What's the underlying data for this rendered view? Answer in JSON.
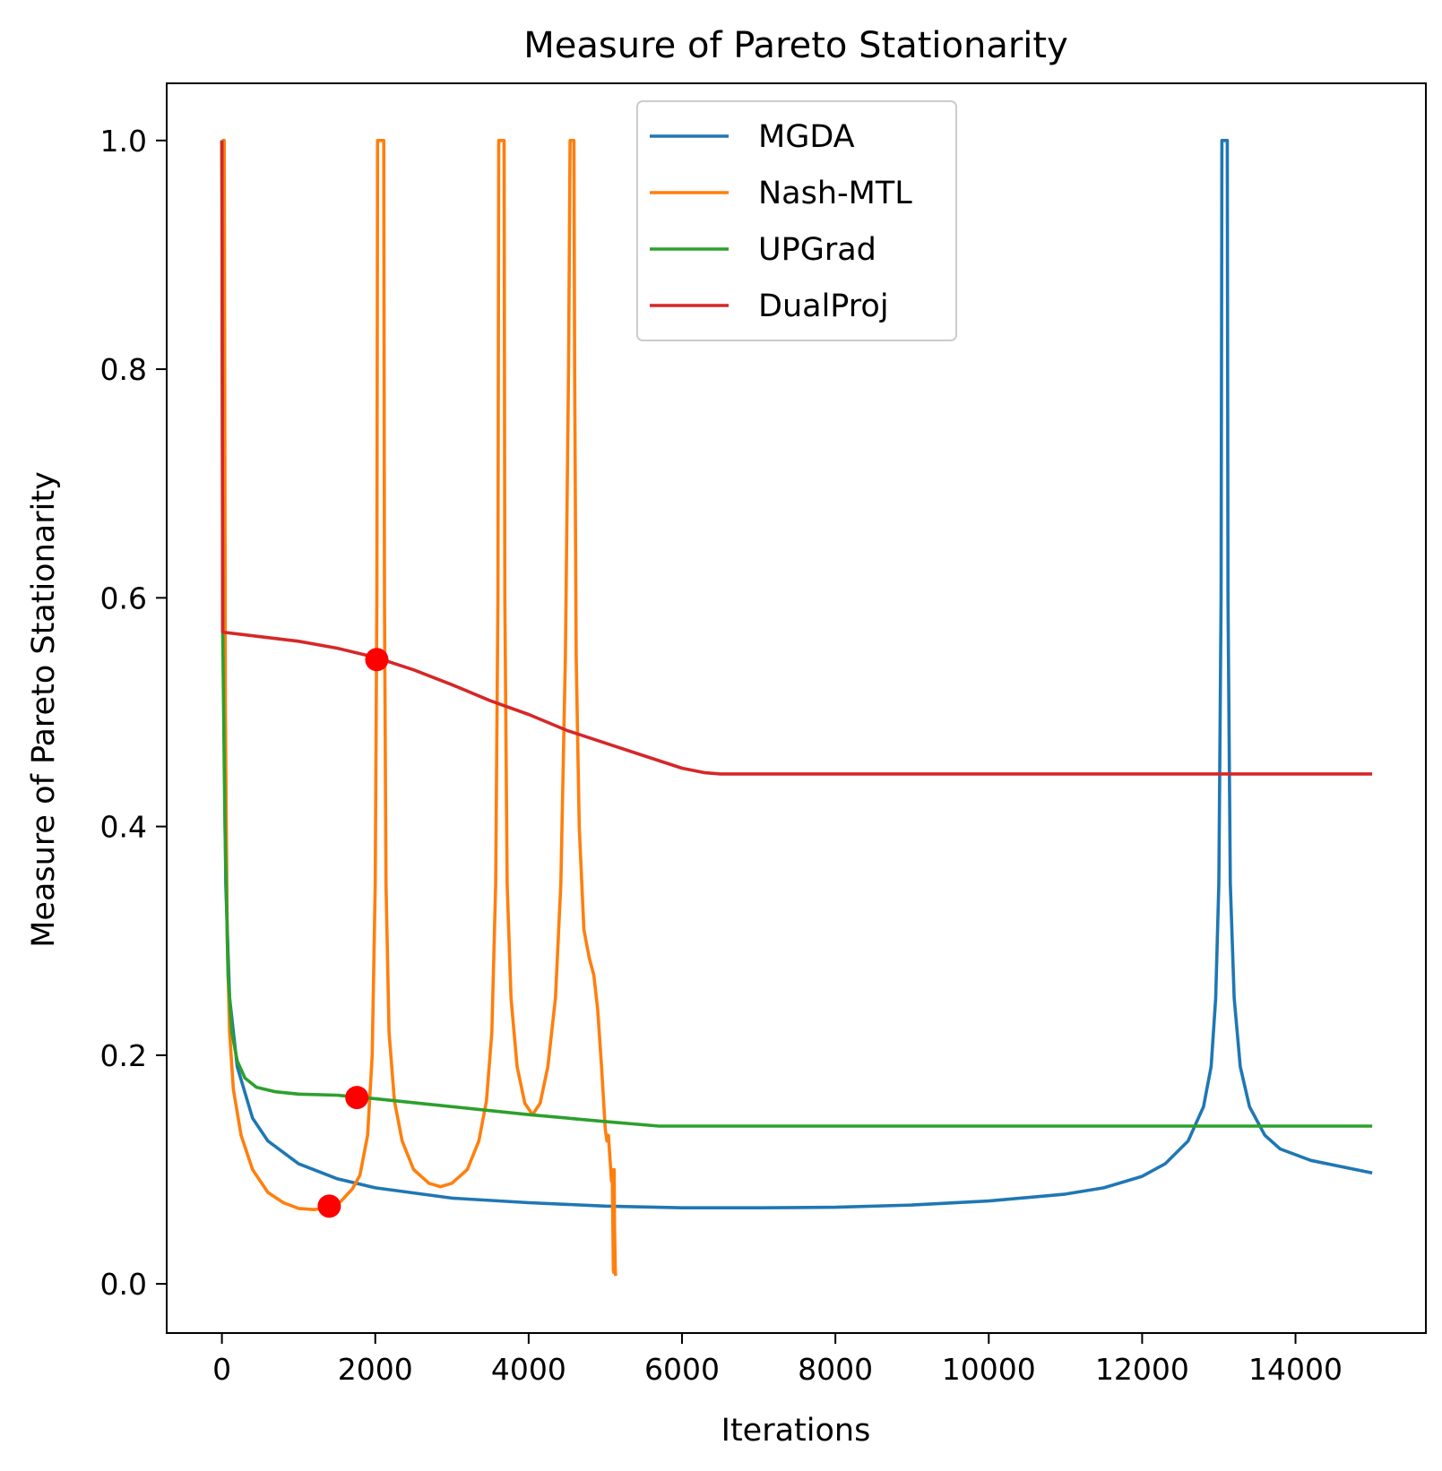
{
  "chart_data": {
    "type": "line",
    "title": "Measure of Pareto Stationarity",
    "xlabel": "Iterations",
    "ylabel": "Measure of Pareto Stationarity",
    "xlim": [
      -720,
      15700
    ],
    "ylim": [
      -0.043,
      1.05
    ],
    "x_ticks": [
      0,
      2000,
      4000,
      6000,
      8000,
      10000,
      12000,
      14000
    ],
    "y_ticks": [
      0.0,
      0.2,
      0.4,
      0.6,
      0.8,
      1.0
    ],
    "x_tick_labels": [
      "0",
      "2000",
      "4000",
      "6000",
      "8000",
      "10000",
      "12000",
      "14000"
    ],
    "y_tick_labels": [
      "0.0",
      "0.2",
      "0.4",
      "0.6",
      "0.8",
      "1.0"
    ],
    "grid": false,
    "legend": {
      "position": "upper center"
    },
    "series": [
      {
        "name": "MGDA",
        "color": "#1f77b4",
        "points": [
          [
            0,
            1.0
          ],
          [
            15,
            0.6
          ],
          [
            50,
            0.35
          ],
          [
            100,
            0.25
          ],
          [
            200,
            0.19
          ],
          [
            400,
            0.145
          ],
          [
            600,
            0.125
          ],
          [
            1000,
            0.105
          ],
          [
            1500,
            0.092
          ],
          [
            2000,
            0.084
          ],
          [
            3000,
            0.075
          ],
          [
            4000,
            0.071
          ],
          [
            5000,
            0.068
          ],
          [
            6000,
            0.0665
          ],
          [
            7000,
            0.0665
          ],
          [
            8000,
            0.067
          ],
          [
            9000,
            0.069
          ],
          [
            10000,
            0.0725
          ],
          [
            11000,
            0.0785
          ],
          [
            11500,
            0.084
          ],
          [
            12000,
            0.094
          ],
          [
            12300,
            0.105
          ],
          [
            12600,
            0.125
          ],
          [
            12800,
            0.155
          ],
          [
            12900,
            0.19
          ],
          [
            12960,
            0.25
          ],
          [
            13000,
            0.35
          ],
          [
            13030,
            0.6
          ],
          [
            13040,
            1.0
          ],
          [
            13110,
            1.0
          ],
          [
            13120,
            0.6
          ],
          [
            13150,
            0.35
          ],
          [
            13200,
            0.25
          ],
          [
            13280,
            0.19
          ],
          [
            13400,
            0.155
          ],
          [
            13600,
            0.13
          ],
          [
            13800,
            0.118
          ],
          [
            14200,
            0.108
          ],
          [
            15000,
            0.097
          ]
        ]
      },
      {
        "name": "Nash-MTL",
        "color": "#ff7f0e",
        "points": [
          [
            0,
            1.0
          ],
          [
            30,
            1.0
          ],
          [
            45,
            0.5
          ],
          [
            70,
            0.3
          ],
          [
            100,
            0.22
          ],
          [
            150,
            0.17
          ],
          [
            250,
            0.13
          ],
          [
            400,
            0.1
          ],
          [
            600,
            0.08
          ],
          [
            800,
            0.071
          ],
          [
            1000,
            0.066
          ],
          [
            1200,
            0.065
          ],
          [
            1400,
            0.067
          ],
          [
            1550,
            0.072
          ],
          [
            1700,
            0.083
          ],
          [
            1800,
            0.095
          ],
          [
            1900,
            0.13
          ],
          [
            1960,
            0.2
          ],
          [
            2000,
            0.35
          ],
          [
            2020,
            0.6
          ],
          [
            2030,
            1.0
          ],
          [
            2110,
            1.0
          ],
          [
            2120,
            0.6
          ],
          [
            2140,
            0.35
          ],
          [
            2180,
            0.22
          ],
          [
            2250,
            0.16
          ],
          [
            2350,
            0.125
          ],
          [
            2500,
            0.1
          ],
          [
            2700,
            0.088
          ],
          [
            2850,
            0.085
          ],
          [
            3000,
            0.088
          ],
          [
            3200,
            0.1
          ],
          [
            3350,
            0.125
          ],
          [
            3450,
            0.16
          ],
          [
            3520,
            0.22
          ],
          [
            3570,
            0.35
          ],
          [
            3600,
            0.6
          ],
          [
            3610,
            1.0
          ],
          [
            3680,
            1.0
          ],
          [
            3690,
            0.6
          ],
          [
            3720,
            0.35
          ],
          [
            3770,
            0.25
          ],
          [
            3850,
            0.19
          ],
          [
            3950,
            0.158
          ],
          [
            4050,
            0.148
          ],
          [
            4150,
            0.158
          ],
          [
            4250,
            0.19
          ],
          [
            4350,
            0.25
          ],
          [
            4420,
            0.35
          ],
          [
            4480,
            0.55
          ],
          [
            4520,
            0.8
          ],
          [
            4540,
            1.0
          ],
          [
            4590,
            1.0
          ],
          [
            4600,
            0.8
          ],
          [
            4620,
            0.55
          ],
          [
            4660,
            0.4
          ],
          [
            4720,
            0.31
          ],
          [
            4790,
            0.285
          ],
          [
            4850,
            0.27
          ],
          [
            4900,
            0.24
          ],
          [
            4950,
            0.19
          ],
          [
            5000,
            0.135
          ],
          [
            5010,
            0.13
          ],
          [
            5020,
            0.125
          ],
          [
            5040,
            0.13
          ],
          [
            5060,
            0.11
          ],
          [
            5080,
            0.09
          ],
          [
            5090,
            0.1
          ],
          [
            5100,
            0.04
          ],
          [
            5105,
            0.012
          ],
          [
            5110,
            0.01
          ],
          [
            5115,
            0.1
          ],
          [
            5120,
            0.05
          ],
          [
            5130,
            0.01
          ],
          [
            5135,
            0.007
          ]
        ]
      },
      {
        "name": "UPGrad",
        "color": "#2ca02c",
        "points": [
          [
            0,
            1.0
          ],
          [
            10,
            0.57
          ],
          [
            40,
            0.4
          ],
          [
            80,
            0.27
          ],
          [
            130,
            0.22
          ],
          [
            200,
            0.195
          ],
          [
            300,
            0.18
          ],
          [
            450,
            0.172
          ],
          [
            700,
            0.168
          ],
          [
            1000,
            0.166
          ],
          [
            1500,
            0.165
          ],
          [
            2000,
            0.162
          ],
          [
            3000,
            0.155
          ],
          [
            4000,
            0.148
          ],
          [
            5000,
            0.142
          ],
          [
            5700,
            0.138
          ],
          [
            6000,
            0.138
          ],
          [
            8000,
            0.138
          ],
          [
            10000,
            0.138
          ],
          [
            12000,
            0.138
          ],
          [
            15000,
            0.138
          ]
        ]
      },
      {
        "name": "DualProj",
        "color": "#d62728",
        "points": [
          [
            0,
            1.0
          ],
          [
            10,
            0.57
          ],
          [
            500,
            0.566
          ],
          [
            1000,
            0.562
          ],
          [
            1500,
            0.556
          ],
          [
            2000,
            0.548
          ],
          [
            2500,
            0.537
          ],
          [
            3000,
            0.524
          ],
          [
            3500,
            0.51
          ],
          [
            4000,
            0.498
          ],
          [
            4500,
            0.484
          ],
          [
            5000,
            0.473
          ],
          [
            5500,
            0.462
          ],
          [
            6000,
            0.451
          ],
          [
            6300,
            0.447
          ],
          [
            6500,
            0.446
          ],
          [
            8000,
            0.446
          ],
          [
            10000,
            0.446
          ],
          [
            12000,
            0.446
          ],
          [
            15000,
            0.446
          ]
        ]
      }
    ],
    "markers": [
      {
        "x": 2020,
        "y": 0.546,
        "color": "#ff0000"
      },
      {
        "x": 1760,
        "y": 0.163,
        "color": "#ff0000"
      },
      {
        "x": 1400,
        "y": 0.068,
        "color": "#ff0000"
      }
    ]
  }
}
